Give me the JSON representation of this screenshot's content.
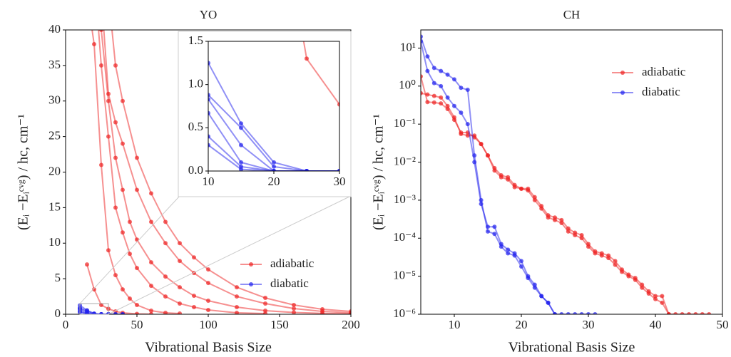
{
  "chart_data": [
    {
      "type": "line",
      "title": "YO",
      "x_label": "Vibrational Basis Size",
      "y_label": "(Eᵢ −Eᵢᶜᵛᵍ) / hc, cm⁻¹",
      "xlim": [
        0,
        200
      ],
      "ylim": [
        0,
        40
      ],
      "xticks": [
        0,
        50,
        100,
        150,
        200
      ],
      "yticks": [
        0,
        5,
        10,
        15,
        20,
        25,
        30,
        35,
        40
      ],
      "legend": "lower right",
      "series": [
        {
          "name": "adiabatic",
          "color": "#ee2222",
          "lines": [
            {
              "x": [
                15,
                20,
                25,
                30,
                35,
                40,
                50,
                60
              ],
              "values": [
                7,
                3.5,
                1.3,
                0.77,
                0.4,
                0.2,
                0.05,
                0.01
              ]
            },
            {
              "x": [
                15,
                20,
                25,
                30,
                35,
                40,
                45,
                50,
                60,
                70,
                80
              ],
              "values": [
                45,
                38,
                21,
                9,
                5.5,
                3.5,
                2.2,
                1.3,
                0.5,
                0.2,
                0.1
              ]
            },
            {
              "x": [
                20,
                25,
                30,
                35,
                40,
                45,
                50,
                60,
                70,
                80,
                90,
                100,
                120,
                140
              ],
              "values": [
                48,
                35,
                25,
                15,
                11.5,
                8.5,
                6.5,
                4,
                2.5,
                1.5,
                1,
                0.6,
                0.2,
                0.1
              ]
            },
            {
              "x": [
                20,
                25,
                30,
                35,
                40,
                45,
                50,
                60,
                70,
                80,
                90,
                100,
                120,
                140,
                160,
                180,
                200
              ],
              "values": [
                50,
                40,
                30,
                22,
                17.5,
                13,
                10.5,
                7.3,
                5.3,
                3.8,
                2.6,
                1.9,
                1,
                0.5,
                0.25,
                0.12,
                0.06
              ]
            },
            {
              "x": [
                25,
                30,
                35,
                40,
                50,
                60,
                70,
                80,
                90,
                100,
                120,
                140,
                160,
                180,
                200
              ],
              "values": [
                45,
                31,
                27,
                24,
                17.5,
                13,
                10,
                7.5,
                5.8,
                4.4,
                2.5,
                1.5,
                0.8,
                0.4,
                0.2
              ]
            },
            {
              "x": [
                30,
                35,
                40,
                50,
                60,
                70,
                80,
                90,
                100,
                120,
                140,
                160,
                180,
                200
              ],
              "values": [
                45,
                35,
                30,
                22,
                17,
                13,
                10,
                8,
                6.3,
                3.8,
                2.3,
                1.3,
                0.7,
                0.4
              ]
            }
          ]
        },
        {
          "name": "diabatic",
          "color": "#2222ee",
          "lines": [
            {
              "x": [
                10,
                15,
                20,
                25,
                30,
                35,
                40
              ],
              "values": [
                1.25,
                0.55,
                0.1,
                0,
                0,
                0,
                0
              ]
            },
            {
              "x": [
                10,
                15,
                20,
                25,
                30,
                35,
                40
              ],
              "values": [
                0.88,
                0.5,
                0.05,
                0,
                0,
                0,
                0
              ]
            },
            {
              "x": [
                10,
                15,
                20,
                25,
                30
              ],
              "values": [
                0.83,
                0.3,
                0,
                0,
                0
              ]
            },
            {
              "x": [
                10,
                15,
                20,
                25,
                30
              ],
              "values": [
                0.67,
                0.1,
                0,
                0,
                0
              ]
            },
            {
              "x": [
                10,
                15,
                20,
                25,
                30
              ],
              "values": [
                0.4,
                0.05,
                0,
                0,
                0
              ]
            },
            {
              "x": [
                10,
                15,
                20,
                25,
                30
              ],
              "values": [
                0.3,
                0.02,
                0,
                0,
                0
              ]
            }
          ]
        }
      ],
      "inset": {
        "xlim": [
          10,
          30
        ],
        "ylim": [
          0,
          1.5
        ],
        "xticks": [
          10,
          20,
          30
        ],
        "yticks": [
          {
            "value": 0,
            "label": "0.0"
          },
          {
            "value": 0.5,
            "label": "0.5"
          },
          {
            "value": 1,
            "label": "1.0"
          },
          {
            "value": 1.5,
            "label": "1.5"
          }
        ]
      }
    },
    {
      "type": "line",
      "title": "CH",
      "x_label": "Vibrational Basis Size",
      "y_label": "(Eᵢ −Eᵢᶜᵛᵍ) / hc, cm⁻¹",
      "yscale": "log",
      "xlim": [
        5,
        50
      ],
      "ylim": [
        1e-06,
        30
      ],
      "xticks": [
        10,
        20,
        30,
        40,
        50
      ],
      "yticks": [
        {
          "value": 1e-06,
          "label": "10⁻⁶"
        },
        {
          "value": 1e-05,
          "label": "10⁻⁵"
        },
        {
          "value": 0.0001,
          "label": "10⁻⁴"
        },
        {
          "value": 0.001,
          "label": "10⁻³"
        },
        {
          "value": 0.01,
          "label": "10⁻²"
        },
        {
          "value": 0.1,
          "label": "10⁻¹"
        },
        {
          "value": 1,
          "label": "10⁰"
        },
        {
          "value": 10,
          "label": "10¹"
        }
      ],
      "legend": "upper right",
      "series": [
        {
          "name": "adiabatic",
          "color": "#ee2222",
          "lines": [
            {
              "x": [
                5,
                6,
                7,
                8,
                9,
                10,
                11,
                12,
                13,
                14,
                15,
                16,
                17,
                18,
                19,
                20,
                21,
                22,
                23,
                24,
                25,
                26,
                27,
                28,
                29,
                30,
                31,
                32,
                33,
                34,
                35,
                36,
                37,
                38,
                39,
                40,
                41,
                42,
                43,
                44,
                45,
                46,
                47,
                48
              ],
              "values": [
                0.65,
                0.6,
                0.55,
                0.5,
                0.3,
                0.15,
                0.055,
                0.05,
                0.05,
                0.03,
                0.015,
                0.007,
                0.0045,
                0.004,
                0.0025,
                0.002,
                0.002,
                0.0012,
                0.0007,
                0.0004,
                0.00035,
                0.0003,
                0.00018,
                0.00014,
                0.00012,
                7e-05,
                4.5e-05,
                4e-05,
                3.5e-05,
                2.5e-05,
                1.5e-05,
                1.1e-05,
                9e-06,
                6e-06,
                4e-06,
                3e-06,
                3e-06,
                1e-06,
                1e-06,
                1e-06,
                1e-06,
                1e-06,
                1e-06,
                1e-06
              ]
            },
            {
              "x": [
                5,
                6,
                7,
                8,
                9,
                10,
                11,
                12,
                13,
                14,
                15,
                16,
                17,
                18,
                19,
                20,
                21,
                22,
                23,
                24,
                25,
                26,
                27,
                28,
                29,
                30,
                31,
                32,
                33,
                34,
                35,
                36,
                37,
                38,
                39,
                40,
                41,
                42
              ],
              "values": [
                1.8,
                0.38,
                0.37,
                0.35,
                0.25,
                0.13,
                0.06,
                0.06,
                0.045,
                0.03,
                0.015,
                0.006,
                0.004,
                0.0035,
                0.0022,
                0.002,
                0.0018,
                0.001,
                0.0006,
                0.00035,
                0.0003,
                0.00025,
                0.00015,
                0.00012,
                0.0001,
                6e-05,
                4e-05,
                3.5e-05,
                3e-05,
                2e-05,
                1.3e-05,
                1e-05,
                8e-06,
                5e-06,
                3.5e-06,
                2.5e-06,
                2e-06,
                1e-06
              ]
            }
          ]
        },
        {
          "name": "diabatic",
          "color": "#2222ee",
          "lines": [
            {
              "x": [
                5,
                6,
                7,
                8,
                9,
                10,
                11,
                12,
                13,
                14,
                15,
                16,
                17,
                18,
                19,
                20,
                21,
                22,
                23,
                24,
                25,
                26,
                27,
                28,
                29,
                30,
                31
              ],
              "values": [
                20,
                6,
                3,
                2.5,
                2,
                1.5,
                0.9,
                0.8,
                0.015,
                0.001,
                0.00015,
                0.00013,
                6e-05,
                4e-05,
                3.5e-05,
                1.8e-05,
                9e-06,
                5e-06,
                3e-06,
                2e-06,
                1e-06,
                1e-06,
                1e-06,
                1e-06,
                1e-06,
                1e-06,
                1e-06
              ]
            },
            {
              "x": [
                5,
                6,
                7,
                8,
                9,
                10,
                11,
                12,
                13,
                14,
                15,
                16,
                17,
                18,
                19,
                20,
                21,
                22,
                23,
                24,
                25
              ],
              "values": [
                15,
                2.5,
                1.2,
                1,
                0.5,
                0.3,
                0.2,
                0.1,
                0.01,
                0.0008,
                0.0002,
                0.0002,
                7e-05,
                5e-05,
                4e-05,
                2.5e-05,
                1e-05,
                6e-06,
                3e-06,
                2e-06,
                1e-06
              ]
            }
          ]
        }
      ]
    }
  ]
}
